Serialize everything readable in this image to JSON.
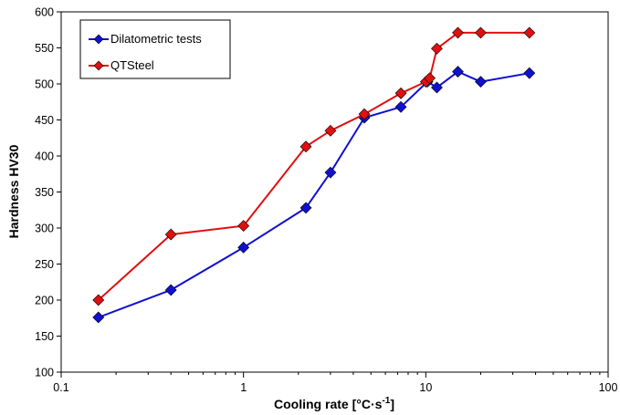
{
  "chart_data": {
    "type": "line",
    "xscale": "log",
    "xlim": [
      0.1,
      100
    ],
    "ylim": [
      100,
      600
    ],
    "xticks": [
      0.1,
      1,
      10,
      100
    ],
    "xtick_labels": [
      "0.1",
      "1",
      "10",
      "100"
    ],
    "yticks": [
      100,
      150,
      200,
      250,
      300,
      350,
      400,
      450,
      500,
      550,
      600
    ],
    "ytick_labels": [
      "100",
      "150",
      "200",
      "250",
      "300",
      "350",
      "400",
      "450",
      "500",
      "550",
      "600"
    ],
    "xlabel": "Cooling rate [°C·s-1]",
    "ylabel": "Hardness HV30",
    "grid": false,
    "legend_position": "top-left",
    "series": [
      {
        "name": "Dilatometric tests",
        "color": "#1010d0",
        "marker": "diamond",
        "x": [
          0.16,
          0.4,
          1.0,
          2.2,
          3.0,
          4.6,
          7.3,
          10.2,
          11.5,
          15.0,
          20.0,
          37.0
        ],
        "y": [
          176,
          214,
          273,
          328,
          377,
          453,
          468,
          503,
          495,
          517,
          503,
          515
        ]
      },
      {
        "name": "QTSteel",
        "color": "#e01010",
        "marker": "diamond",
        "x": [
          0.16,
          0.4,
          1.0,
          2.2,
          3.0,
          4.6,
          7.3,
          10.0,
          10.5,
          11.5,
          15.0,
          20.0,
          37.0
        ],
        "y": [
          200,
          291,
          303,
          413,
          435,
          458,
          487,
          503,
          508,
          549,
          571,
          571,
          571
        ]
      }
    ]
  }
}
